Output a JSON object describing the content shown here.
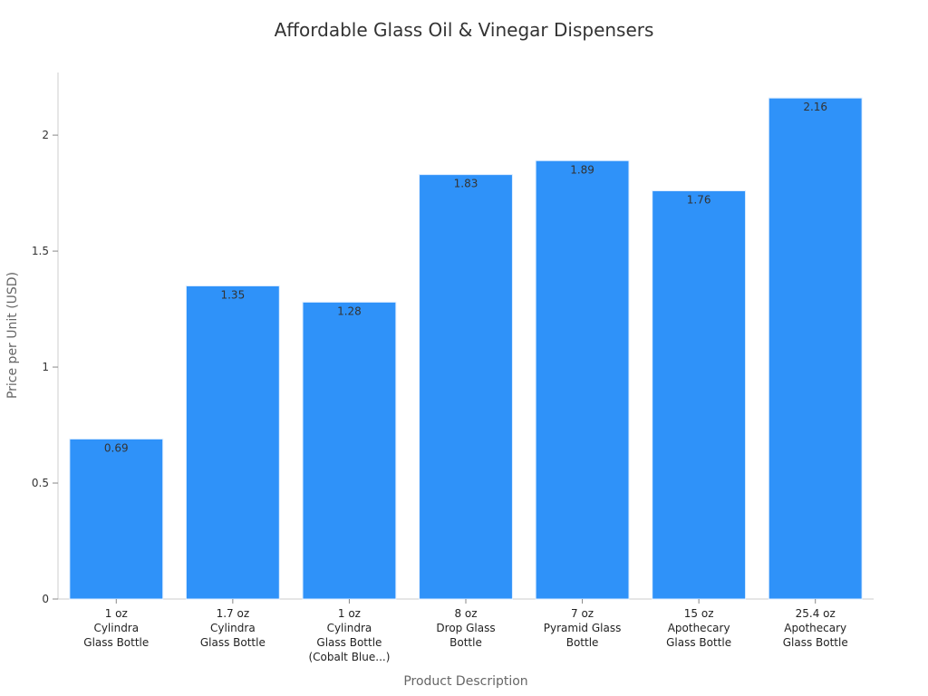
{
  "chart_data": {
    "type": "bar",
    "title": "Affordable Glass Oil & Vinegar Dispensers",
    "xlabel": "Product Description",
    "ylabel": "Price per Unit (USD)",
    "ylim": [
      0,
      2.27
    ],
    "yticks": [
      0,
      0.5,
      1,
      1.5,
      2
    ],
    "ytick_labels": [
      "0",
      "0.5",
      "1",
      "1.5",
      "2"
    ],
    "grid": false,
    "bar_color": "#2f92f9",
    "categories": [
      [
        "1 oz",
        "Cylindra",
        "Glass Bottle"
      ],
      [
        "1.7 oz",
        "Cylindra",
        "Glass Bottle"
      ],
      [
        "1 oz",
        "Cylindra",
        "Glass Bottle",
        "(Cobalt Blue...)"
      ],
      [
        "8 oz",
        "Drop Glass",
        "Bottle"
      ],
      [
        "7 oz",
        "Pyramid Glass",
        "Bottle"
      ],
      [
        "15 oz",
        "Apothecary",
        "Glass Bottle"
      ],
      [
        "25.4 oz",
        "Apothecary",
        "Glass Bottle"
      ]
    ],
    "values": [
      0.69,
      1.35,
      1.28,
      1.83,
      1.89,
      1.76,
      2.16
    ],
    "value_labels": [
      "0.69",
      "1.35",
      "1.28",
      "1.83",
      "1.89",
      "1.76",
      "2.16"
    ]
  }
}
